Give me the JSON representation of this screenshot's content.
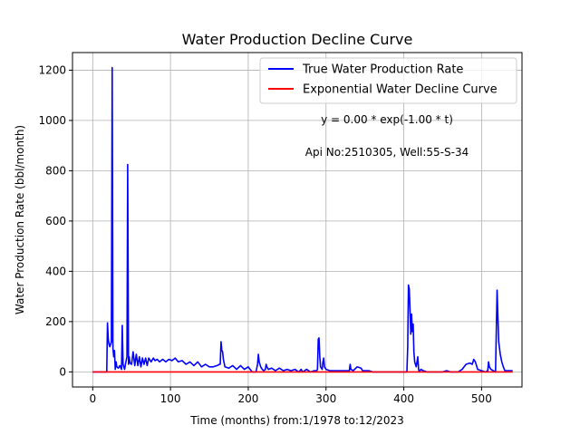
{
  "chart_data": {
    "type": "line",
    "title": "Water Production Decline Curve",
    "xlabel": "Time (months) from:1/1978 to:12/2023",
    "ylabel": "Water Production Rate (bbl/month)",
    "xlim": [
      -26,
      552
    ],
    "ylim": [
      -60,
      1270
    ],
    "xticks": [
      0,
      100,
      200,
      300,
      400,
      500
    ],
    "yticks": [
      0,
      200,
      400,
      600,
      800,
      1000,
      1200
    ],
    "grid": true,
    "legend_position": "top-right",
    "annotations": [
      "y = 0.00 * exp(-1.00 * t)",
      "Api No:2510305, Well:55-S-34"
    ],
    "series": [
      {
        "name": "True Water Production Rate",
        "color": "#0000ff",
        "x": [
          0,
          18,
          19,
          20,
          21,
          22,
          24,
          25,
          26,
          27,
          28,
          29,
          30,
          31,
          33,
          35,
          37,
          38,
          39,
          40,
          41,
          42,
          44,
          45,
          46,
          47,
          48,
          50,
          52,
          54,
          56,
          58,
          60,
          62,
          64,
          66,
          68,
          70,
          72,
          75,
          78,
          80,
          83,
          86,
          90,
          94,
          98,
          102,
          106,
          110,
          115,
          120,
          125,
          130,
          135,
          140,
          145,
          150,
          155,
          160,
          163,
          164,
          165,
          166,
          167,
          168,
          170,
          175,
          180,
          185,
          190,
          195,
          200,
          205,
          210,
          212,
          213,
          214,
          215,
          216,
          218,
          220,
          222,
          223,
          224,
          226,
          230,
          235,
          240,
          245,
          250,
          255,
          260,
          265,
          268,
          270,
          275,
          280,
          285,
          288,
          289,
          290,
          291,
          292,
          293,
          295,
          296,
          297,
          298,
          300,
          305,
          310,
          315,
          320,
          325,
          330,
          331,
          332,
          335,
          340,
          345,
          347,
          350,
          355,
          360,
          370,
          380,
          390,
          400,
          403,
          404,
          405,
          406,
          407,
          408,
          409,
          410,
          411,
          412,
          413,
          414,
          415,
          416,
          418,
          419,
          420,
          421,
          422,
          425,
          430,
          440,
          450,
          455,
          460,
          470,
          475,
          480,
          485,
          488,
          490,
          492,
          495,
          500,
          505,
          508,
          509,
          510,
          512,
          515,
          518,
          520,
          521,
          522,
          524,
          526,
          528,
          530,
          535,
          540
        ],
        "values": [
          0,
          0,
          195,
          130,
          110,
          100,
          120,
          1210,
          95,
          60,
          85,
          10,
          40,
          20,
          15,
          25,
          10,
          185,
          30,
          20,
          10,
          30,
          60,
          825,
          30,
          60,
          35,
          30,
          80,
          25,
          70,
          25,
          60,
          20,
          55,
          30,
          55,
          25,
          55,
          40,
          55,
          45,
          50,
          40,
          50,
          40,
          50,
          45,
          55,
          40,
          45,
          30,
          40,
          25,
          40,
          20,
          30,
          20,
          20,
          25,
          30,
          30,
          120,
          85,
          80,
          50,
          20,
          15,
          25,
          10,
          25,
          10,
          20,
          0,
          0,
          30,
          70,
          40,
          30,
          20,
          10,
          5,
          10,
          30,
          20,
          10,
          15,
          5,
          15,
          5,
          10,
          5,
          10,
          0,
          10,
          0,
          10,
          0,
          5,
          5,
          10,
          130,
          135,
          60,
          20,
          10,
          40,
          55,
          20,
          10,
          5,
          5,
          5,
          5,
          5,
          5,
          30,
          10,
          5,
          20,
          15,
          5,
          5,
          5,
          0,
          0,
          0,
          0,
          0,
          0,
          0,
          100,
          345,
          330,
          250,
          150,
          230,
          160,
          190,
          80,
          40,
          30,
          20,
          60,
          10,
          0,
          5,
          10,
          5,
          0,
          0,
          0,
          5,
          0,
          0,
          10,
          30,
          35,
          30,
          50,
          40,
          10,
          5,
          0,
          5,
          40,
          20,
          10,
          5,
          0,
          325,
          220,
          120,
          70,
          40,
          20,
          5,
          5,
          5
        ]
      },
      {
        "name": "Exponential Water Decline Curve",
        "color": "#ff0000",
        "x": [
          0,
          540
        ],
        "values": [
          0,
          0
        ]
      }
    ]
  }
}
